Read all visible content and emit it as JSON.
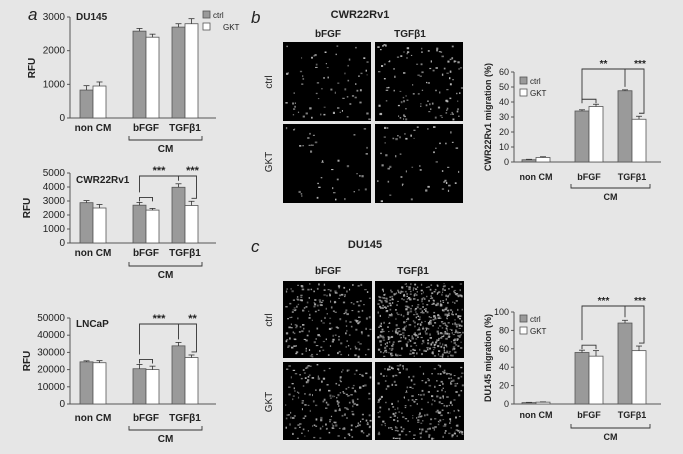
{
  "panel_letters": {
    "a": "a",
    "b": "b",
    "c": "c"
  },
  "micro": {
    "b": {
      "title": "CWR22Rv1",
      "col_labels": [
        "bFGF",
        "TGFβ1"
      ],
      "row_labels": [
        "ctrl",
        "GKT"
      ]
    },
    "c": {
      "title": "DU145",
      "col_labels": [
        "bFGF",
        "TGFβ1"
      ],
      "row_labels": [
        "ctrl",
        "GKT"
      ]
    }
  },
  "colors": {
    "ctrl": "#9a9a9a",
    "GKT": "#ffffff",
    "background": "#e6e6e6"
  },
  "chart_data": [
    {
      "id": "du145_rfu",
      "type": "bar",
      "title": "DU145",
      "ylabel": "RFU",
      "ylim": [
        0,
        3000
      ],
      "yticks": [
        0,
        1000,
        2000,
        3000
      ],
      "categories": [
        "non CM",
        "bFGF",
        "TGFβ1"
      ],
      "group_label": "CM",
      "series": [
        {
          "name": "ctrl",
          "values": [
            830,
            2580,
            2700
          ],
          "errors": [
            130,
            80,
            100
          ]
        },
        {
          "name": "GKT",
          "values": [
            950,
            2400,
            2800
          ],
          "errors": [
            120,
            90,
            150
          ]
        }
      ],
      "significance": [],
      "legend": "top-right"
    },
    {
      "id": "cwr_rfu",
      "type": "bar",
      "title": "CWR22Rv1",
      "ylabel": "RFU",
      "ylim": [
        0,
        5000
      ],
      "yticks": [
        0,
        1000,
        2000,
        3000,
        4000,
        5000
      ],
      "categories": [
        "non CM",
        "bFGF",
        "TGFβ1"
      ],
      "group_label": "CM",
      "series": [
        {
          "name": "ctrl",
          "values": [
            2880,
            2700,
            3980
          ],
          "errors": [
            150,
            200,
            250
          ]
        },
        {
          "name": "GKT",
          "values": [
            2500,
            2350,
            2680
          ],
          "errors": [
            250,
            120,
            300
          ]
        }
      ],
      "significance": [
        {
          "label": "***"
        },
        {
          "label": "***"
        }
      ]
    },
    {
      "id": "lncap_rfu",
      "type": "bar",
      "title": "LNCaP",
      "ylabel": "RFU",
      "ylim": [
        0,
        50000
      ],
      "yticks": [
        0,
        10000,
        20000,
        30000,
        40000,
        50000
      ],
      "categories": [
        "non CM",
        "bFGF",
        "TGFβ1"
      ],
      "group_label": "CM",
      "series": [
        {
          "name": "ctrl",
          "values": [
            24500,
            20500,
            33800
          ],
          "errors": [
            600,
            2500,
            2000
          ]
        },
        {
          "name": "GKT",
          "values": [
            24000,
            20000,
            27000
          ],
          "errors": [
            1200,
            2000,
            1500
          ]
        }
      ],
      "significance": [
        {
          "label": "***"
        },
        {
          "label": "**"
        }
      ]
    },
    {
      "id": "cwr_migration",
      "type": "bar",
      "ylabel": "CWR22Rv1 migration (%)",
      "ylim": [
        0,
        60
      ],
      "yticks": [
        0,
        10,
        20,
        30,
        40,
        50,
        60
      ],
      "categories": [
        "non CM",
        "bFGF",
        "TGFβ1"
      ],
      "group_label": "CM",
      "series": [
        {
          "name": "ctrl",
          "values": [
            1.5,
            34,
            47.5
          ],
          "errors": [
            0.3,
            0.8,
            0.6
          ]
        },
        {
          "name": "GKT",
          "values": [
            3,
            37,
            28.5
          ],
          "errors": [
            0.5,
            1.5,
            2
          ]
        }
      ],
      "significance": [
        {
          "label": "**"
        },
        {
          "label": "***"
        }
      ],
      "legend": "top-left"
    },
    {
      "id": "du145_migration",
      "type": "bar",
      "ylabel": "DU145 migration (%)",
      "ylim": [
        0,
        100
      ],
      "yticks": [
        0,
        20,
        40,
        60,
        80,
        100
      ],
      "categories": [
        "non CM",
        "bFGF",
        "TGFβ1"
      ],
      "group_label": "CM",
      "series": [
        {
          "name": "ctrl",
          "values": [
            1.5,
            56,
            88
          ],
          "errors": [
            0.3,
            2.5,
            3
          ]
        },
        {
          "name": "GKT",
          "values": [
            2,
            52,
            58
          ],
          "errors": [
            0.3,
            6,
            5
          ]
        }
      ],
      "significance": [
        {
          "label": "***"
        },
        {
          "label": "***"
        }
      ],
      "legend": "top-left"
    }
  ]
}
